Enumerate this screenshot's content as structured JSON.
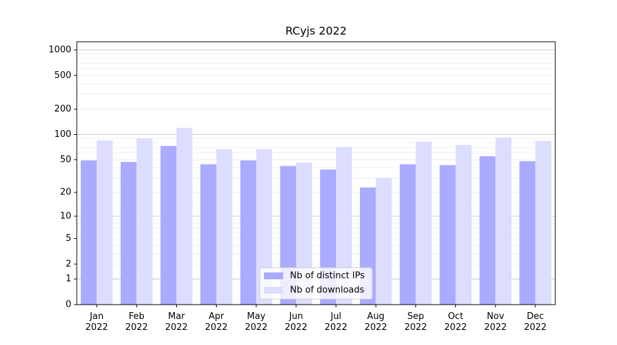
{
  "chart_data": {
    "type": "bar",
    "title": "RCyjs 2022",
    "categories": [
      "Jan\n2022",
      "Feb\n2022",
      "Mar\n2022",
      "Apr\n2022",
      "May\n2022",
      "Jun\n2022",
      "Jul\n2022",
      "Aug\n2022",
      "Sep\n2022",
      "Oct\n2022",
      "Nov\n2022",
      "Dec\n2022"
    ],
    "series": [
      {
        "name": "Nb of distinct IPs",
        "color": "#aaaaff",
        "values": [
          49,
          47,
          73,
          44,
          49,
          42,
          38,
          23,
          44,
          43,
          55,
          48
        ]
      },
      {
        "name": "Nb of downloads",
        "color": "#ddddff",
        "values": [
          85,
          90,
          120,
          67,
          67,
          46,
          71,
          30,
          82,
          75,
          92,
          84
        ]
      }
    ],
    "yscale": "log1p",
    "ylim": [
      0,
      1250
    ],
    "yticks": [
      0,
      1,
      2,
      5,
      10,
      20,
      50,
      100,
      200,
      500,
      1000
    ],
    "grid": true,
    "major_grid": [
      1,
      10,
      100,
      1000
    ],
    "minor_grid": [
      2,
      3,
      4,
      5,
      6,
      7,
      8,
      9,
      20,
      30,
      40,
      50,
      60,
      70,
      80,
      90,
      200,
      300,
      400,
      500,
      600,
      700,
      800,
      900
    ],
    "legend": "lower center"
  }
}
